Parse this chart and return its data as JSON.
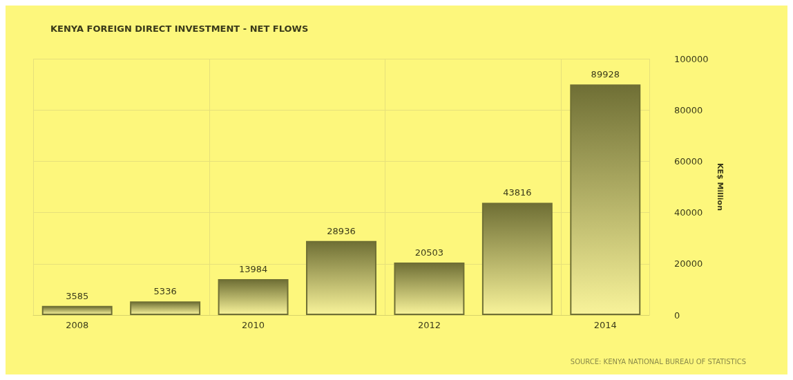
{
  "chart_data": {
    "type": "bar",
    "title": "KENYA FOREIGN DIRECT INVESTMENT - NET FLOWS",
    "categories": [
      "2008",
      null,
      "2010",
      null,
      "2012",
      null,
      "2014"
    ],
    "values": [
      3585,
      5336,
      13984,
      28936,
      20503,
      43816,
      89928
    ],
    "color": "#6f6f35",
    "ylabel": "KE$ Million",
    "ylim": [
      0,
      100000
    ],
    "yticks": [
      0,
      20000,
      40000,
      60000,
      80000,
      100000
    ],
    "grid": true,
    "data_labels": true,
    "annotations": [
      "SOURCE: KENYA NATIONAL BUREAU OF STATISTICS"
    ]
  }
}
